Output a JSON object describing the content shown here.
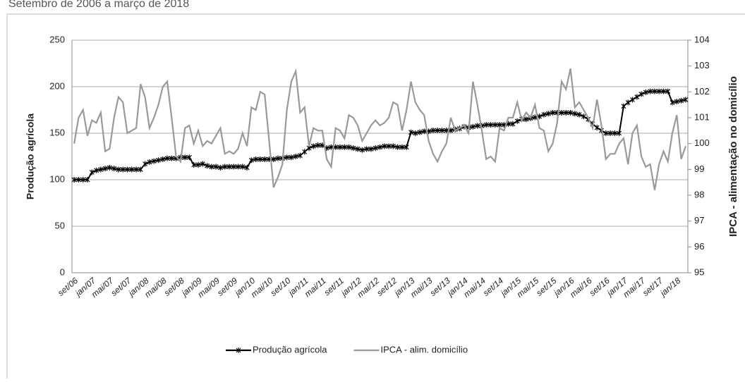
{
  "chart_data": {
    "type": "line",
    "title": "Setembro de 2006 a março de 2018",
    "y_label": "Produção agrícola",
    "y2_label": "IPCA - alimentação no domicílio",
    "categories": [
      "set/06",
      null,
      null,
      null,
      "jan/07",
      null,
      null,
      null,
      "mai/07",
      null,
      null,
      null,
      "set/07",
      null,
      null,
      null,
      "jan/08",
      null,
      null,
      null,
      "mai/08",
      null,
      null,
      null,
      "set/08",
      null,
      null,
      null,
      "jan/09",
      null,
      null,
      null,
      "mai/09",
      null,
      null,
      null,
      "set/09",
      null,
      null,
      null,
      "jan/10",
      null,
      null,
      null,
      "mai/10",
      null,
      null,
      null,
      "set/10",
      null,
      null,
      null,
      "jan/11",
      null,
      null,
      null,
      "mai/11",
      null,
      null,
      null,
      "set/11",
      null,
      null,
      null,
      "jan/12",
      null,
      null,
      null,
      "mai/12",
      null,
      null,
      null,
      "set/12",
      null,
      null,
      null,
      "jan/13",
      null,
      null,
      null,
      "mai/13",
      null,
      null,
      null,
      "set/13",
      null,
      null,
      null,
      "jan/14",
      null,
      null,
      null,
      "mai/14",
      null,
      null,
      null,
      "set/14",
      null,
      null,
      null,
      "jan/15",
      null,
      null,
      null,
      "mai/15",
      null,
      null,
      null,
      "set/15",
      null,
      null,
      null,
      "jan/16",
      null,
      null,
      null,
      "mai/16",
      null,
      null,
      null,
      "set/16",
      null,
      null,
      null,
      "jan/17",
      null,
      null,
      null,
      "mai/17",
      null,
      null,
      null,
      "set/17",
      null,
      null,
      null,
      "jan/18",
      null,
      null
    ],
    "series": [
      {
        "name": "Produção agrícola",
        "color": "#000000",
        "marker": "star",
        "values": [
          100,
          100,
          100,
          100,
          108,
          110,
          111,
          112,
          113,
          112,
          111,
          111,
          111,
          111,
          111,
          111,
          117,
          119,
          120,
          121,
          122,
          123,
          123,
          123,
          124,
          124,
          124,
          116,
          116,
          117,
          115,
          114,
          114,
          113,
          114,
          114,
          114,
          114,
          114,
          113,
          121,
          122,
          122,
          122,
          122,
          122,
          123,
          123,
          124,
          124,
          125,
          126,
          130,
          134,
          136,
          137,
          137,
          134,
          135,
          135,
          135,
          135,
          135,
          134,
          133,
          132,
          133,
          133,
          134,
          135,
          136,
          136,
          136,
          135,
          135,
          135,
          151,
          150,
          151,
          152,
          152,
          153,
          153,
          153,
          153,
          153,
          154,
          155,
          157,
          156,
          157,
          158,
          158,
          159,
          159,
          159,
          159,
          159,
          160,
          160,
          163,
          165,
          165,
          166,
          167,
          168,
          170,
          171,
          172,
          172,
          172,
          172,
          172,
          171,
          170,
          168,
          165,
          160,
          156,
          153,
          150,
          150,
          150,
          150,
          179,
          183,
          186,
          189,
          192,
          194,
          195,
          195,
          195,
          195,
          195,
          183,
          184,
          185,
          186
        ]
      },
      {
        "name": "IPCA - alim. domicílio",
        "color": "#999999",
        "axis": "y2",
        "values": [
          100.0,
          101.0,
          101.3,
          100.3,
          100.9,
          100.8,
          101.2,
          99.7,
          99.8,
          101.0,
          101.8,
          101.6,
          100.4,
          100.5,
          100.6,
          102.3,
          101.8,
          100.6,
          101.0,
          101.5,
          102.2,
          102.4,
          101.0,
          99.5,
          99.3,
          100.6,
          100.7,
          100.0,
          100.5,
          99.9,
          100.1,
          100.0,
          100.3,
          100.6,
          99.6,
          99.7,
          99.6,
          99.8,
          100.4,
          99.9,
          101.4,
          101.3,
          102.0,
          101.9,
          100.1,
          98.3,
          98.7,
          99.2,
          101.3,
          102.4,
          102.8,
          101.2,
          101.4,
          99.9,
          100.6,
          100.5,
          100.5,
          99.4,
          99.1,
          100.6,
          100.5,
          100.2,
          101.1,
          101.0,
          100.7,
          100.1,
          100.4,
          100.7,
          100.9,
          100.7,
          100.8,
          101.0,
          101.6,
          101.5,
          100.5,
          101.3,
          102.4,
          101.6,
          101.3,
          101.1,
          100.1,
          99.6,
          99.3,
          99.7,
          100.0,
          101.0,
          100.5,
          100.6,
          100.7,
          100.4,
          102.4,
          101.5,
          100.5,
          99.4,
          99.5,
          99.3,
          100.6,
          100.5,
          101.0,
          101.0,
          101.6,
          100.9,
          101.2,
          101.0,
          101.5,
          100.6,
          100.5,
          99.7,
          100.0,
          100.8,
          102.4,
          102.1,
          102.9,
          101.4,
          101.6,
          101.3,
          101.0,
          100.6,
          101.7,
          100.7,
          99.4,
          99.6,
          99.6,
          100.0,
          100.2,
          99.2,
          100.4,
          100.7,
          99.5,
          99.1,
          99.2,
          98.2,
          99.2,
          99.7,
          99.3,
          100.4,
          101.1,
          99.4,
          99.9
        ]
      }
    ],
    "ylim": [
      0,
      250
    ],
    "yticks": [
      0,
      50,
      100,
      150,
      200,
      250
    ],
    "y2lim": [
      95,
      104
    ],
    "y2ticks": [
      95,
      96,
      97,
      98,
      99,
      100,
      101,
      102,
      103,
      104
    ],
    "grid": true,
    "legend": "bottom"
  }
}
